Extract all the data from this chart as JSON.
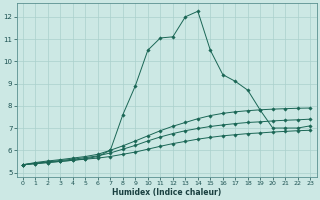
{
  "xlabel": "Humidex (Indice chaleur)",
  "xlim": [
    -0.5,
    23.5
  ],
  "ylim": [
    4.8,
    12.6
  ],
  "yticks": [
    5,
    6,
    7,
    8,
    9,
    10,
    11,
    12
  ],
  "xticks": [
    0,
    1,
    2,
    3,
    4,
    5,
    6,
    7,
    8,
    9,
    10,
    11,
    12,
    13,
    14,
    15,
    16,
    17,
    18,
    19,
    20,
    21,
    22,
    23
  ],
  "bg_color": "#cce8e4",
  "grid_color": "#aad0cc",
  "line_color": "#1a6655",
  "line1_x": [
    0,
    1,
    2,
    3,
    4,
    5,
    6,
    7,
    8,
    9,
    10,
    11,
    12,
    13,
    14,
    15,
    16,
    17,
    18,
    19,
    20,
    21,
    22,
    23
  ],
  "line1_y": [
    5.35,
    5.4,
    5.45,
    5.5,
    5.55,
    5.6,
    5.65,
    5.72,
    5.82,
    5.92,
    6.05,
    6.18,
    6.3,
    6.4,
    6.5,
    6.58,
    6.65,
    6.7,
    6.75,
    6.78,
    6.82,
    6.85,
    6.88,
    6.9
  ],
  "line2_x": [
    0,
    1,
    2,
    3,
    4,
    5,
    6,
    7,
    8,
    9,
    10,
    11,
    12,
    13,
    14,
    15,
    16,
    17,
    18,
    19,
    20,
    21,
    22,
    23
  ],
  "line2_y": [
    5.35,
    5.42,
    5.48,
    5.54,
    5.6,
    5.67,
    5.75,
    5.88,
    6.05,
    6.22,
    6.42,
    6.6,
    6.75,
    6.88,
    6.98,
    7.07,
    7.14,
    7.2,
    7.25,
    7.28,
    7.32,
    7.35,
    7.37,
    7.4
  ],
  "line3_x": [
    0,
    1,
    2,
    3,
    4,
    5,
    6,
    7,
    8,
    9,
    10,
    11,
    12,
    13,
    14,
    15,
    16,
    17,
    18,
    19,
    20,
    21,
    22,
    23
  ],
  "line3_y": [
    5.35,
    5.45,
    5.52,
    5.58,
    5.65,
    5.72,
    5.82,
    6.0,
    6.2,
    6.42,
    6.65,
    6.88,
    7.08,
    7.25,
    7.42,
    7.56,
    7.66,
    7.73,
    7.78,
    7.82,
    7.85,
    7.87,
    7.89,
    7.9
  ],
  "line4_x": [
    0,
    1,
    2,
    3,
    4,
    5,
    6,
    7,
    8,
    9,
    10,
    11,
    12,
    13,
    14,
    15,
    16,
    17,
    18,
    19,
    20,
    21,
    22,
    23
  ],
  "line4_y": [
    5.35,
    5.4,
    5.45,
    5.5,
    5.55,
    5.62,
    5.72,
    6.0,
    7.6,
    8.9,
    10.5,
    11.05,
    11.1,
    12.0,
    12.25,
    10.5,
    9.4,
    9.1,
    8.7,
    7.8,
    7.0,
    7.0,
    7.0,
    7.1
  ]
}
